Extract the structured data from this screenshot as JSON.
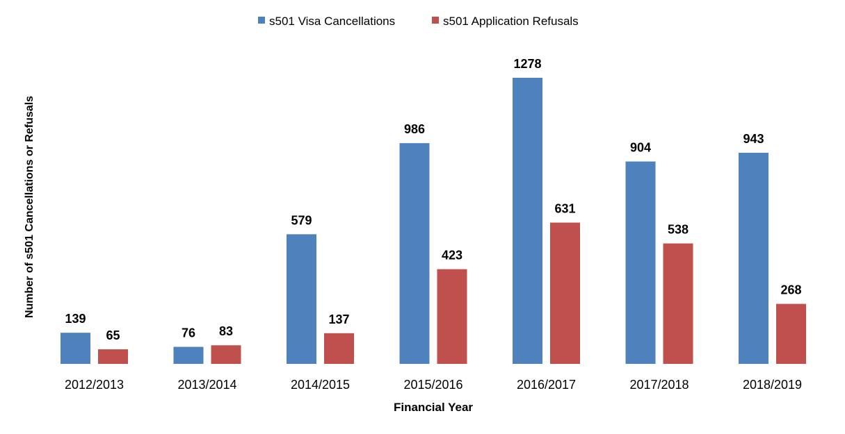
{
  "chart_data": {
    "type": "bar",
    "title": "",
    "xlabel": "Financial Year",
    "ylabel": "Number of s501 Cancellations or Refusals",
    "categories": [
      "2012/2013",
      "2013/2014",
      "2014/2015",
      "2015/2016",
      "2016/2017",
      "2017/2018",
      "2018/2019"
    ],
    "series": [
      {
        "name": "s501 Visa Cancellations",
        "color": "#4F81BD",
        "values": [
          139,
          76,
          579,
          986,
          1278,
          904,
          943
        ]
      },
      {
        "name": "s501 Application Refusals",
        "color": "#C0504D",
        "values": [
          65,
          83,
          137,
          423,
          631,
          538,
          268
        ]
      }
    ],
    "ylim": [
      0,
      1278
    ],
    "grid": false,
    "legend": "top-center",
    "data_labels": true
  }
}
